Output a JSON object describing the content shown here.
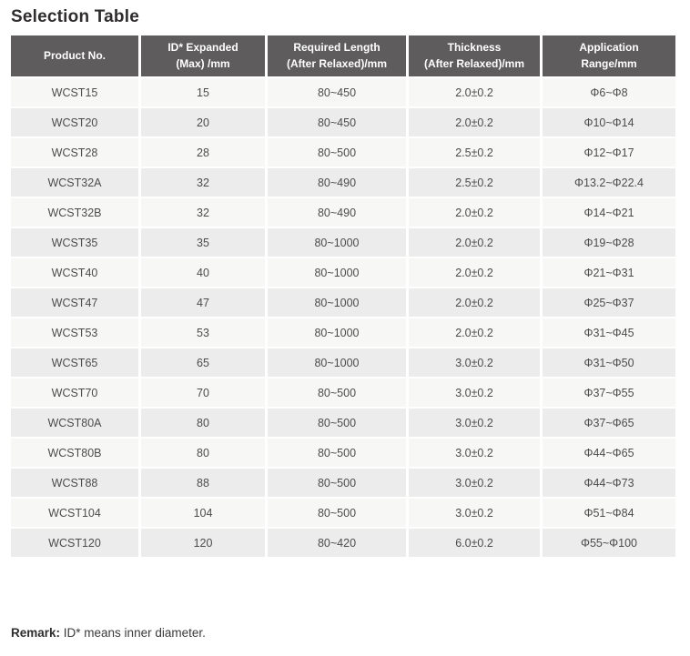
{
  "page": {
    "title": "Selection Table",
    "remark_label": "Remark:",
    "remark_text": " ID* means inner diameter."
  },
  "colors": {
    "header_bg": "#5e5c5c",
    "header_text": "#ffffff",
    "row_light": "#f7f7f6",
    "row_dark": "#ececec",
    "body_text": "#4c4c4c",
    "title_text": "#2f2d2d"
  },
  "table": {
    "columns": [
      {
        "label": "Product No."
      },
      {
        "label": "ID* Expanded\n(Max) /mm"
      },
      {
        "label": "Required Length\n(After Relaxed)/mm"
      },
      {
        "label": "Thickness\n(After Relaxed)/mm"
      },
      {
        "label": "Application\nRange/mm"
      }
    ],
    "rows": [
      [
        "WCST15",
        "15",
        "80~450",
        "2.0±0.2",
        "Φ6~Φ8"
      ],
      [
        "WCST20",
        "20",
        "80~450",
        "2.0±0.2",
        "Φ10~Φ14"
      ],
      [
        "WCST28",
        "28",
        "80~500",
        "2.5±0.2",
        "Φ12~Φ17"
      ],
      [
        "WCST32A",
        "32",
        "80~490",
        "2.5±0.2",
        "Φ13.2~Φ22.4"
      ],
      [
        "WCST32B",
        "32",
        "80~490",
        "2.0±0.2",
        "Φ14~Φ21"
      ],
      [
        "WCST35",
        "35",
        "80~1000",
        "2.0±0.2",
        "Φ19~Φ28"
      ],
      [
        "WCST40",
        "40",
        "80~1000",
        "2.0±0.2",
        "Φ21~Φ31"
      ],
      [
        "WCST47",
        "47",
        "80~1000",
        "2.0±0.2",
        "Φ25~Φ37"
      ],
      [
        "WCST53",
        "53",
        "80~1000",
        "2.0±0.2",
        "Φ31~Φ45"
      ],
      [
        "WCST65",
        "65",
        "80~1000",
        "3.0±0.2",
        "Φ31~Φ50"
      ],
      [
        "WCST70",
        "70",
        "80~500",
        "3.0±0.2",
        "Φ37~Φ55"
      ],
      [
        "WCST80A",
        "80",
        "80~500",
        "3.0±0.2",
        "Φ37~Φ65"
      ],
      [
        "WCST80B",
        "80",
        "80~500",
        "3.0±0.2",
        "Φ44~Φ65"
      ],
      [
        "WCST88",
        "88",
        "80~500",
        "3.0±0.2",
        "Φ44~Φ73"
      ],
      [
        "WCST104",
        "104",
        "80~500",
        "3.0±0.2",
        "Φ51~Φ84"
      ],
      [
        "WCST120",
        "120",
        "80~420",
        "6.0±0.2",
        "Φ55~Φ100"
      ]
    ]
  }
}
